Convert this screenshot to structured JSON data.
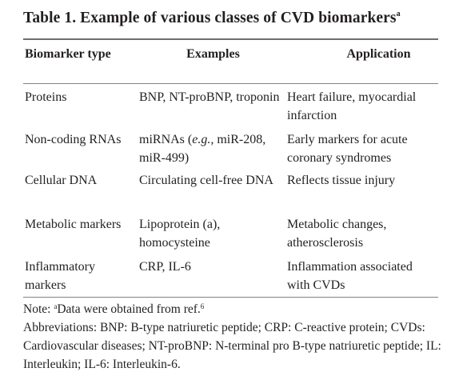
{
  "table": {
    "title": "Table 1. Example of various classes of CVD biomarkers",
    "title_sup": "a",
    "headers": {
      "biomarker_type": "Biomarker type",
      "examples": "Examples",
      "application": "Application"
    },
    "rows": [
      {
        "type": "Proteins",
        "examples_parts": [
          "BNP, NT-proBNP, troponin"
        ],
        "application": "Heart failure, myocardial infarction"
      },
      {
        "type": "Non-coding RNAs",
        "examples_pre": "miRNAs (",
        "examples_em": "e.g.,",
        "examples_post": " miR-208, miR-499)",
        "application": "Early markers for acute coronary syndromes"
      },
      {
        "type": "Cellular DNA",
        "examples_parts": [
          "Circulating cell-free DNA"
        ],
        "application": "Reflects tissue injury"
      },
      {
        "type": "Metabolic markers",
        "examples_parts": [
          "Lipoprotein (a), homocysteine"
        ],
        "application": "Metabolic changes, atherosclerosis"
      },
      {
        "type": "Inflammatory markers",
        "examples_parts": [
          "CRP, IL-6"
        ],
        "application": "Inflammation associated with CVDs"
      }
    ]
  },
  "note": {
    "prefix": "Note: ",
    "sup_a": "a",
    "text": "Data were obtained from ref.",
    "ref_sup": "6",
    "abbreviations": "Abbreviations: BNP: B-type natriuretic peptide; CRP: C-reactive protein; CVDs: Cardiovascular diseases; NT-proBNP: N-terminal pro B-type natriuretic peptide; IL: Interleukin;  IL-6: Interleukin-6."
  }
}
